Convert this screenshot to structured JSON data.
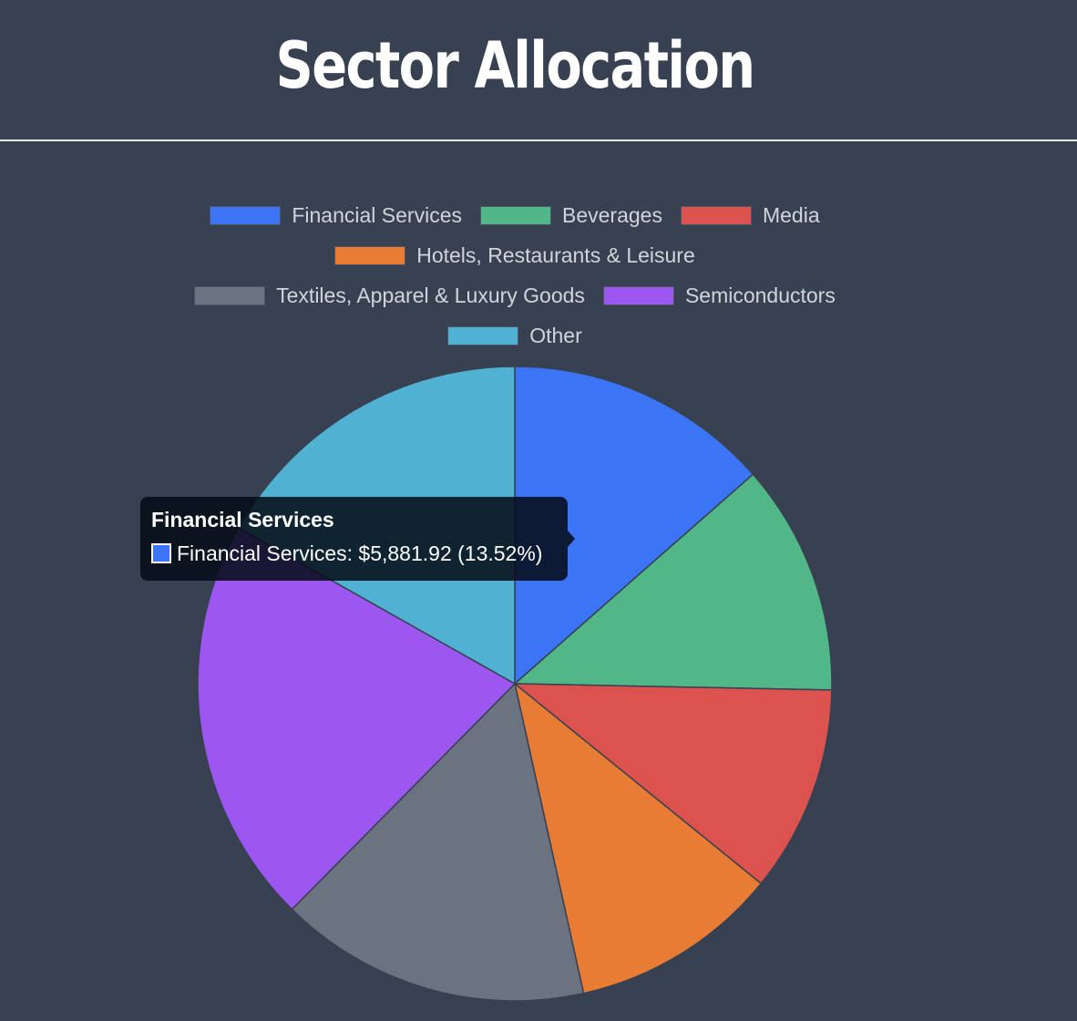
{
  "page": {
    "title": "Sector Allocation"
  },
  "chart_data": {
    "type": "pie",
    "title": "",
    "slices": [
      {
        "label": "Financial Services",
        "value": 5881.92,
        "percent": 13.52,
        "color": "#3b74f5"
      },
      {
        "label": "Beverages",
        "value": 5128.4,
        "percent": 11.79,
        "color": "#52b788"
      },
      {
        "label": "Media",
        "value": 4580.0,
        "percent": 10.53,
        "color": "#dc524e"
      },
      {
        "label": "Hotels, Restaurants & Leisure",
        "value": 4640.0,
        "percent": 10.67,
        "color": "#e97c35"
      },
      {
        "label": "Textiles, Apparel & Luxury Goods",
        "value": 6910.0,
        "percent": 15.89,
        "color": "#6b7280"
      },
      {
        "label": "Semiconductors",
        "value": 9030.0,
        "percent": 20.76,
        "color": "#9b57ef"
      },
      {
        "label": "Other",
        "value": 7320.0,
        "percent": 16.83,
        "color": "#50b1d3"
      }
    ],
    "legend_position": "top",
    "legend_rows": [
      [
        0,
        1,
        2
      ],
      [
        3
      ],
      [
        4,
        5
      ],
      [
        6
      ]
    ]
  },
  "tooltip": {
    "title": "Financial Services",
    "body": "Financial Services: $5,881.92 (13.52%)",
    "color": "#3b74f5"
  }
}
